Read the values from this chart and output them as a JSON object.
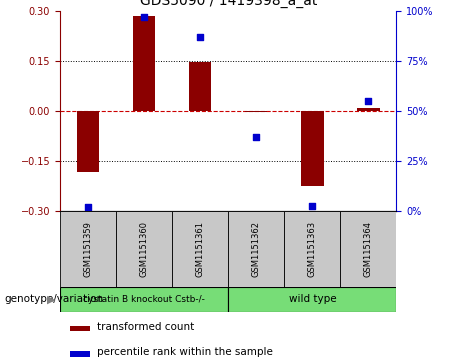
{
  "title": "GDS5090 / 1419398_a_at",
  "samples": [
    "GSM1151359",
    "GSM1151360",
    "GSM1151361",
    "GSM1151362",
    "GSM1151363",
    "GSM1151364"
  ],
  "bar_values": [
    -0.185,
    0.285,
    0.145,
    -0.005,
    -0.225,
    0.008
  ],
  "percentile_values": [
    2.0,
    97.0,
    87.0,
    37.0,
    2.5,
    55.0
  ],
  "ylim_left": [
    -0.3,
    0.3
  ],
  "ylim_right": [
    0,
    100
  ],
  "yticks_left": [
    -0.3,
    -0.15,
    0,
    0.15,
    0.3
  ],
  "yticks_right": [
    0,
    25,
    50,
    75,
    100
  ],
  "bar_color": "#8B0000",
  "dot_color": "#0000CD",
  "zero_line_color": "#CC0000",
  "group1_label": "cystatin B knockout Cstb-/-",
  "group2_label": "wild type",
  "group1_color": "#77DD77",
  "group2_color": "#77DD77",
  "group1_indices": [
    0,
    1,
    2
  ],
  "group2_indices": [
    3,
    4,
    5
  ],
  "genotype_label": "genotype/variation",
  "legend_bar_label": "transformed count",
  "legend_dot_label": "percentile rank within the sample",
  "tick_label_area_bg": "#C8C8C8",
  "title_fontsize": 10,
  "tick_fontsize": 7,
  "sample_fontsize": 6,
  "legend_fontsize": 7.5,
  "geno_fontsize": 7.5,
  "genotype_label_fontsize": 7.5
}
